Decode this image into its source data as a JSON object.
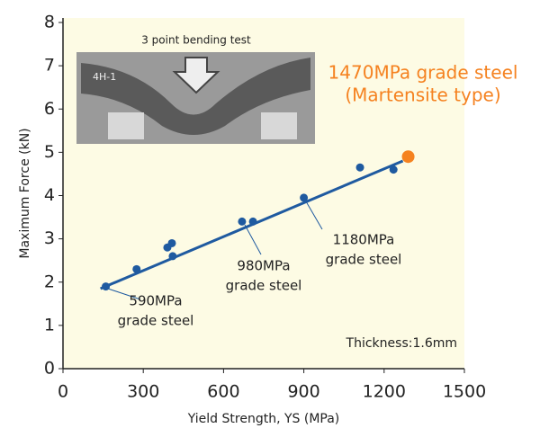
{
  "chart_data": {
    "type": "scatter",
    "xlabel": "Yield Strength, YS (MPa)",
    "ylabel": "Maximum Force (kN)",
    "xlim": [
      0,
      1500
    ],
    "xticks": [
      0,
      300,
      600,
      900,
      1200,
      1500
    ],
    "ylim": [
      0,
      8
    ],
    "yticks": [
      0,
      1,
      2,
      3,
      4,
      5,
      6,
      7,
      8
    ],
    "grid": false,
    "series": [
      {
        "color": "#1f5aa0",
        "mode": "markers",
        "x": [
          160,
          275,
          390,
          407,
          410,
          669,
          710,
          900,
          1110,
          1235
        ],
        "values": [
          1.9,
          2.3,
          2.8,
          2.9,
          2.6,
          3.4,
          3.4,
          3.95,
          4.65,
          4.6
        ]
      },
      {
        "color": "#f58220",
        "mode": "markers",
        "x": [
          1290
        ],
        "values": [
          4.9
        ]
      },
      {
        "color": "#1f5aa0",
        "mode": "line",
        "x": [
          140,
          1270
        ],
        "values": [
          1.85,
          4.8
        ]
      }
    ],
    "annotations": [
      {
        "lines": [
          "590MPa",
          "grade steel"
        ],
        "color": "#222222"
      },
      {
        "lines": [
          "980MPa",
          "grade steel"
        ],
        "color": "#222222"
      },
      {
        "lines": [
          "1180MPa",
          "grade steel"
        ],
        "color": "#222222"
      },
      {
        "lines": [
          "1470MPa grade steel",
          "(Martensite type)"
        ],
        "color": "#f58220"
      },
      {
        "lines": [
          "Thickness:1.6mm"
        ],
        "color": "#222222"
      }
    ],
    "inset": {
      "caption": "3 point bending test",
      "photo_label": "4H-1"
    }
  }
}
